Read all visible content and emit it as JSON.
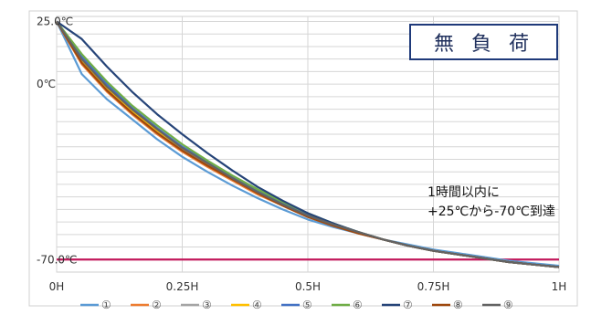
{
  "chart_data": {
    "type": "line",
    "title": "無 負 荷",
    "annotation": [
      "1時間以内に",
      "+25℃から-70℃到達"
    ],
    "x": [
      0,
      0.05,
      0.1,
      0.15,
      0.2,
      0.25,
      0.3,
      0.35,
      0.4,
      0.45,
      0.5,
      0.55,
      0.6,
      0.65,
      0.7,
      0.75,
      0.8,
      0.85,
      0.9,
      0.95,
      1.0
    ],
    "xlim": [
      0,
      1
    ],
    "ylim": [
      -75,
      27
    ],
    "x_ticks": [
      {
        "value": 0,
        "label": "0H"
      },
      {
        "value": 0.25,
        "label": "0.25H"
      },
      {
        "value": 0.5,
        "label": "0.5H"
      },
      {
        "value": 0.75,
        "label": "0.75H"
      },
      {
        "value": 1.0,
        "label": "1H"
      }
    ],
    "y_ticks": [
      {
        "value": 25,
        "label": "25.0℃"
      },
      {
        "value": 0,
        "label": "0℃"
      },
      {
        "value": -70,
        "label": "-70.0℃"
      }
    ],
    "grid": true,
    "legend_position": "bottom",
    "reference_line": {
      "value": -70,
      "color": "#c2185b"
    },
    "series": [
      {
        "name": "①",
        "color": "#5b9bd5",
        "values": [
          25,
          4,
          -6,
          -14,
          -22,
          -29,
          -35,
          -40.5,
          -45.5,
          -50,
          -54,
          -57,
          -59.5,
          -62,
          -64,
          -66,
          -67.5,
          -69,
          -70.5,
          -71.5,
          -72.5
        ]
      },
      {
        "name": "②",
        "color": "#ed7d31",
        "values": [
          25,
          8,
          -3,
          -12,
          -20,
          -27,
          -33,
          -38.5,
          -44,
          -48.5,
          -53,
          -56.5,
          -59.5,
          -62,
          -64.5,
          -66.5,
          -68,
          -69.5,
          -71,
          -72,
          -73
        ]
      },
      {
        "name": "③",
        "color": "#a5a5a5",
        "values": [
          25,
          9,
          -2,
          -11,
          -19,
          -26,
          -32,
          -38,
          -43,
          -48,
          -52.5,
          -56,
          -59,
          -62,
          -64.5,
          -66.5,
          -68,
          -69.5,
          -71,
          -72,
          -73
        ]
      },
      {
        "name": "④",
        "color": "#ffc000",
        "values": [
          25,
          9.5,
          -1.5,
          -10.5,
          -18.5,
          -25.5,
          -31.5,
          -37.5,
          -43,
          -48,
          -52.5,
          -56,
          -59,
          -62,
          -64.5,
          -66.5,
          -68,
          -69.5,
          -71,
          -72,
          -73
        ]
      },
      {
        "name": "⑤",
        "color": "#4472c4",
        "values": [
          25,
          11,
          0,
          -9.5,
          -17.5,
          -25,
          -31,
          -37,
          -42.5,
          -47.5,
          -52,
          -55.5,
          -59,
          -62,
          -64.5,
          -66.5,
          -68,
          -69.5,
          -71,
          -72,
          -73
        ]
      },
      {
        "name": "⑥",
        "color": "#70ad47",
        "values": [
          25,
          12,
          1,
          -8.5,
          -16.5,
          -24,
          -30.5,
          -36.5,
          -42,
          -47,
          -51.5,
          -55.5,
          -59,
          -62,
          -64.5,
          -66.5,
          -68,
          -69.5,
          -71,
          -72,
          -73
        ]
      },
      {
        "name": "⑦",
        "color": "#264478",
        "values": [
          25,
          18,
          7,
          -3,
          -12,
          -20,
          -27.5,
          -34.5,
          -41,
          -46.5,
          -51.5,
          -55.5,
          -59,
          -62,
          -64.5,
          -66.5,
          -68,
          -69.5,
          -71,
          -72,
          -73
        ]
      },
      {
        "name": "⑧",
        "color": "#9e480e",
        "values": [
          25,
          8.5,
          -2.5,
          -11.5,
          -19.5,
          -26.5,
          -32.5,
          -38,
          -43.5,
          -48.5,
          -53,
          -56.5,
          -59.5,
          -62,
          -64.5,
          -66.5,
          -68,
          -69.5,
          -71,
          -72,
          -73
        ]
      },
      {
        "name": "⑨",
        "color": "#636363",
        "values": [
          25,
          10,
          -1,
          -10,
          -18,
          -25.5,
          -31.5,
          -37.5,
          -43,
          -48,
          -52.5,
          -56,
          -59,
          -62,
          -64.5,
          -66.5,
          -68,
          -69.5,
          -71,
          -72,
          -73
        ]
      }
    ]
  }
}
